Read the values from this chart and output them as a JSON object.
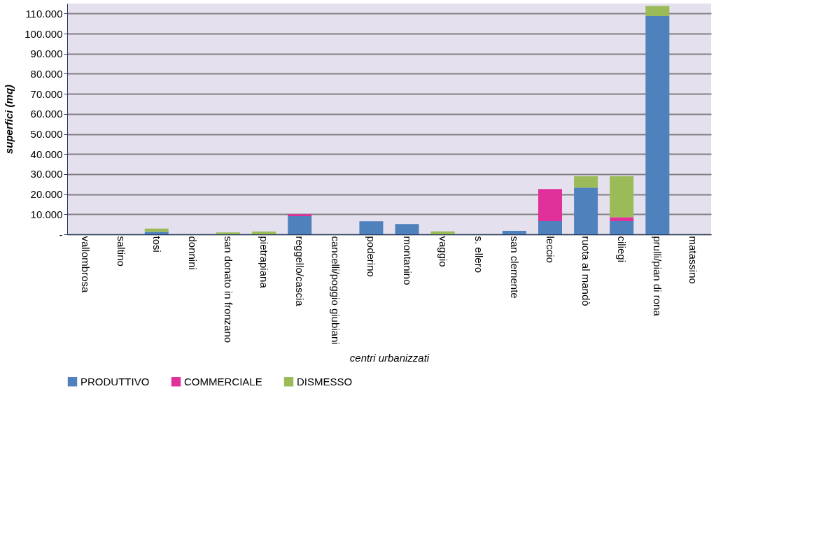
{
  "chart_data": {
    "type": "bar",
    "stacked": true,
    "xlabel": "centri urbanizzati",
    "ylabel": "superfici (mq)",
    "categories": [
      "vallombrosa",
      "saltino",
      "tosi",
      "donnini",
      "san donato in fronzano",
      "pietrapiana",
      "reggello/cascia",
      "cancelli/poggio giubiani",
      "poderino",
      "montanino",
      "vaggio",
      "s. ellero",
      "san clemente",
      "leccio",
      "ruota al mandò",
      "ciliegi",
      "prulli/pian di rona",
      "matassino"
    ],
    "series": [
      {
        "name": "PRODUTTIVO",
        "color": "#4f81bd",
        "values": [
          0,
          0,
          1200,
          0,
          0,
          0,
          9100,
          0,
          6500,
          5100,
          0,
          0,
          1700,
          6600,
          23300,
          6600,
          108700,
          0
        ]
      },
      {
        "name": "COMMERCIALE",
        "color": "#e0309a",
        "values": [
          0,
          0,
          0,
          0,
          0,
          0,
          900,
          0,
          0,
          0,
          0,
          0,
          0,
          16000,
          0,
          1900,
          0,
          0
        ]
      },
      {
        "name": "DISMESSO",
        "color": "#9bbb59",
        "values": [
          0,
          0,
          1700,
          0,
          1000,
          1400,
          0,
          0,
          0,
          0,
          1500,
          0,
          0,
          0,
          5600,
          20400,
          5100,
          0
        ]
      }
    ],
    "ylim": [
      0,
      115000
    ],
    "yticks": [
      {
        "value": 0,
        "label": "-"
      },
      {
        "value": 10000,
        "label": "10.000"
      },
      {
        "value": 20000,
        "label": "20.000"
      },
      {
        "value": 30000,
        "label": "30.000"
      },
      {
        "value": 40000,
        "label": "40.000"
      },
      {
        "value": 50000,
        "label": "50.000"
      },
      {
        "value": 60000,
        "label": "60.000"
      },
      {
        "value": 70000,
        "label": "70.000"
      },
      {
        "value": 80000,
        "label": "80.000"
      },
      {
        "value": 90000,
        "label": "90.000"
      },
      {
        "value": 100000,
        "label": "100.000"
      },
      {
        "value": 110000,
        "label": "110.000"
      }
    ],
    "grid": "y",
    "legend": "bottom"
  }
}
